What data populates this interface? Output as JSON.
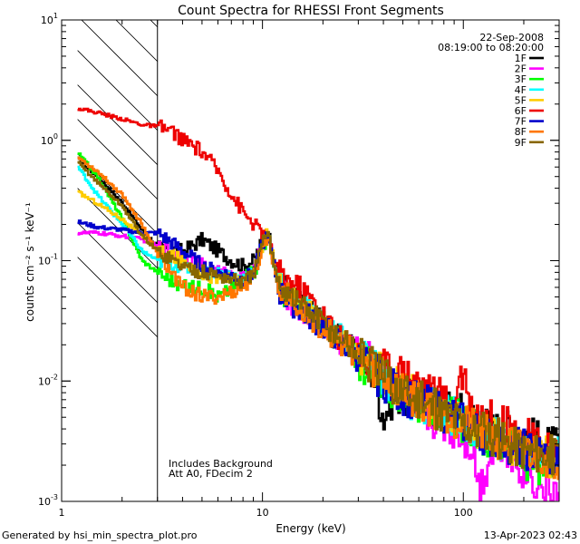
{
  "chart_data": {
    "type": "line",
    "title": "Count Spectra for RHESSI Front Segments",
    "xlabel": "Energy (keV)",
    "ylabel": "counts cm⁻² s⁻¹ keV⁻¹",
    "xscale": "log",
    "yscale": "log",
    "xlim": [
      1,
      300
    ],
    "ylim": [
      0.001,
      10
    ],
    "x_tick_labels": [
      {
        "value": 1,
        "label": "1"
      },
      {
        "value": 10,
        "label": "10"
      },
      {
        "value": 100,
        "label": "100"
      }
    ],
    "y_tick_labels": [
      {
        "value": 0.001,
        "base": "10",
        "exp": "-3"
      },
      {
        "value": 0.01,
        "base": "10",
        "exp": "-2"
      },
      {
        "value": 0.1,
        "base": "10",
        "exp": "-1"
      },
      {
        "value": 1,
        "base": "10",
        "exp": "0"
      },
      {
        "value": 10,
        "base": "10",
        "exp": "1"
      }
    ],
    "hatched_region": {
      "from_keV": 1.2,
      "to_keV": 3
    },
    "date": "22-Sep-2008",
    "time_range": "08:19:00 to 08:20:00",
    "annotations": [
      "Includes Background",
      "Att A0, FDecim 2"
    ],
    "series": [
      {
        "name": "1F",
        "color": "#000000",
        "points": [
          [
            1.2,
            0.7
          ],
          [
            1.5,
            0.5
          ],
          [
            2,
            0.3
          ],
          [
            2.5,
            0.18
          ],
          [
            3,
            0.13
          ],
          [
            4,
            0.12
          ],
          [
            5,
            0.15
          ],
          [
            6,
            0.12
          ],
          [
            7,
            0.1
          ],
          [
            8,
            0.09
          ],
          [
            9,
            0.1
          ],
          [
            10,
            0.15
          ],
          [
            10.5,
            0.18
          ],
          [
            12,
            0.07
          ],
          [
            15,
            0.045
          ],
          [
            20,
            0.03
          ],
          [
            25,
            0.022
          ],
          [
            30,
            0.016
          ],
          [
            35,
            0.012
          ],
          [
            40,
            0.005
          ],
          [
            45,
            0.008
          ],
          [
            55,
            0.007
          ],
          [
            70,
            0.006
          ],
          [
            90,
            0.006
          ],
          [
            110,
            0.005
          ],
          [
            140,
            0.004
          ],
          [
            170,
            0.004
          ],
          [
            200,
            0.0038
          ],
          [
            250,
            0.003
          ],
          [
            300,
            0.0028
          ]
        ]
      },
      {
        "name": "2F",
        "color": "#ff00ff",
        "points": [
          [
            1.2,
            0.17
          ],
          [
            1.5,
            0.17
          ],
          [
            2,
            0.16
          ],
          [
            2.5,
            0.15
          ],
          [
            3,
            0.13
          ],
          [
            4,
            0.11
          ],
          [
            5,
            0.09
          ],
          [
            6,
            0.08
          ],
          [
            7,
            0.075
          ],
          [
            8,
            0.07
          ],
          [
            9,
            0.08
          ],
          [
            10,
            0.14
          ],
          [
            10.5,
            0.17
          ],
          [
            12,
            0.06
          ],
          [
            15,
            0.04
          ],
          [
            20,
            0.028
          ],
          [
            25,
            0.02
          ],
          [
            30,
            0.018
          ],
          [
            35,
            0.014
          ],
          [
            40,
            0.012
          ],
          [
            45,
            0.009
          ],
          [
            55,
            0.007
          ],
          [
            70,
            0.005
          ],
          [
            90,
            0.004
          ],
          [
            110,
            0.003
          ],
          [
            120,
            0.0013
          ],
          [
            140,
            0.003
          ],
          [
            170,
            0.0025
          ],
          [
            200,
            0.0018
          ],
          [
            250,
            0.0013
          ],
          [
            300,
            0.0012
          ]
        ]
      },
      {
        "name": "3F",
        "color": "#00ff00",
        "points": [
          [
            1.2,
            0.78
          ],
          [
            1.5,
            0.5
          ],
          [
            2,
            0.22
          ],
          [
            2.5,
            0.1
          ],
          [
            3,
            0.08
          ],
          [
            4,
            0.06
          ],
          [
            5,
            0.06
          ],
          [
            6,
            0.05
          ],
          [
            7,
            0.06
          ],
          [
            8,
            0.07
          ],
          [
            9,
            0.08
          ],
          [
            10,
            0.13
          ],
          [
            10.5,
            0.16
          ],
          [
            12,
            0.06
          ],
          [
            15,
            0.04
          ],
          [
            20,
            0.03
          ],
          [
            25,
            0.02
          ],
          [
            30,
            0.015
          ],
          [
            35,
            0.012
          ],
          [
            40,
            0.01
          ],
          [
            45,
            0.008
          ],
          [
            55,
            0.007
          ],
          [
            70,
            0.006
          ],
          [
            90,
            0.005
          ],
          [
            110,
            0.004
          ],
          [
            140,
            0.003
          ],
          [
            170,
            0.0028
          ],
          [
            200,
            0.0022
          ],
          [
            250,
            0.002
          ],
          [
            300,
            0.002
          ]
        ]
      },
      {
        "name": "4F",
        "color": "#00ffff",
        "points": [
          [
            1.2,
            0.6
          ],
          [
            1.5,
            0.35
          ],
          [
            2,
            0.2
          ],
          [
            2.5,
            0.12
          ],
          [
            3,
            0.1
          ],
          [
            4,
            0.09
          ],
          [
            5,
            0.08
          ],
          [
            6,
            0.08
          ],
          [
            7,
            0.075
          ],
          [
            8,
            0.07
          ],
          [
            9,
            0.08
          ],
          [
            10,
            0.14
          ],
          [
            10.5,
            0.17
          ],
          [
            12,
            0.07
          ],
          [
            15,
            0.045
          ],
          [
            20,
            0.03
          ],
          [
            25,
            0.022
          ],
          [
            30,
            0.017
          ],
          [
            35,
            0.013
          ],
          [
            40,
            0.011
          ],
          [
            45,
            0.009
          ],
          [
            55,
            0.007
          ],
          [
            70,
            0.006
          ],
          [
            90,
            0.005
          ],
          [
            110,
            0.004
          ],
          [
            140,
            0.0035
          ],
          [
            170,
            0.003
          ],
          [
            200,
            0.0028
          ],
          [
            250,
            0.0025
          ],
          [
            300,
            0.0023
          ]
        ]
      },
      {
        "name": "5F",
        "color": "#ffcc00",
        "points": [
          [
            1.2,
            0.37
          ],
          [
            1.5,
            0.3
          ],
          [
            2,
            0.22
          ],
          [
            2.5,
            0.16
          ],
          [
            3,
            0.12
          ],
          [
            4,
            0.1
          ],
          [
            5,
            0.08
          ],
          [
            6,
            0.07
          ],
          [
            7,
            0.07
          ],
          [
            8,
            0.065
          ],
          [
            9,
            0.075
          ],
          [
            10,
            0.14
          ],
          [
            10.5,
            0.17
          ],
          [
            12,
            0.065
          ],
          [
            15,
            0.045
          ],
          [
            20,
            0.03
          ],
          [
            25,
            0.022
          ],
          [
            30,
            0.017
          ],
          [
            35,
            0.013
          ],
          [
            40,
            0.011
          ],
          [
            45,
            0.009
          ],
          [
            55,
            0.008
          ],
          [
            70,
            0.006
          ],
          [
            90,
            0.005
          ],
          [
            110,
            0.004
          ],
          [
            140,
            0.0035
          ],
          [
            170,
            0.003
          ],
          [
            200,
            0.0027
          ],
          [
            250,
            0.0024
          ],
          [
            300,
            0.0022
          ]
        ]
      },
      {
        "name": "6F",
        "color": "#ee0000",
        "points": [
          [
            1.2,
            1.85
          ],
          [
            1.5,
            1.7
          ],
          [
            2,
            1.5
          ],
          [
            2.5,
            1.35
          ],
          [
            3,
            1.3
          ],
          [
            3.5,
            1.2
          ],
          [
            4,
            1.0
          ],
          [
            5,
            0.8
          ],
          [
            6,
            0.55
          ],
          [
            7,
            0.35
          ],
          [
            8,
            0.25
          ],
          [
            9,
            0.2
          ],
          [
            10,
            0.17
          ],
          [
            11,
            0.12
          ],
          [
            12,
            0.08
          ],
          [
            13,
            0.07
          ],
          [
            15,
            0.06
          ],
          [
            17,
            0.05
          ],
          [
            20,
            0.035
          ],
          [
            23,
            0.025
          ],
          [
            25,
            0.022
          ],
          [
            28,
            0.02
          ],
          [
            32,
            0.016
          ],
          [
            35,
            0.014
          ],
          [
            40,
            0.013
          ],
          [
            45,
            0.012
          ],
          [
            50,
            0.012
          ],
          [
            55,
            0.011
          ],
          [
            60,
            0.01
          ],
          [
            65,
            0.009
          ],
          [
            70,
            0.008
          ],
          [
            80,
            0.007
          ],
          [
            90,
            0.0055
          ],
          [
            95,
            0.014
          ],
          [
            100,
            0.009
          ],
          [
            110,
            0.006
          ],
          [
            130,
            0.005
          ],
          [
            150,
            0.0045
          ],
          [
            170,
            0.004
          ],
          [
            200,
            0.0035
          ],
          [
            230,
            0.003
          ],
          [
            260,
            0.003
          ],
          [
            300,
            0.0028
          ]
        ]
      },
      {
        "name": "7F",
        "color": "#0000cc",
        "points": [
          [
            1.2,
            0.21
          ],
          [
            1.5,
            0.19
          ],
          [
            2,
            0.18
          ],
          [
            2.5,
            0.17
          ],
          [
            3,
            0.17
          ],
          [
            4,
            0.12
          ],
          [
            5,
            0.09
          ],
          [
            6,
            0.08
          ],
          [
            7,
            0.075
          ],
          [
            8,
            0.07
          ],
          [
            9,
            0.08
          ],
          [
            10,
            0.14
          ],
          [
            10.5,
            0.17
          ],
          [
            12,
            0.055
          ],
          [
            15,
            0.04
          ],
          [
            20,
            0.028
          ],
          [
            25,
            0.02
          ],
          [
            30,
            0.015
          ],
          [
            35,
            0.012
          ],
          [
            40,
            0.01
          ],
          [
            45,
            0.0085
          ],
          [
            55,
            0.007
          ],
          [
            70,
            0.006
          ],
          [
            90,
            0.005
          ],
          [
            110,
            0.004
          ],
          [
            140,
            0.0033
          ],
          [
            170,
            0.003
          ],
          [
            200,
            0.0027
          ],
          [
            250,
            0.0024
          ],
          [
            300,
            0.0022
          ]
        ]
      },
      {
        "name": "8F",
        "color": "#ff7700",
        "points": [
          [
            1.2,
            0.72
          ],
          [
            1.5,
            0.55
          ],
          [
            2,
            0.35
          ],
          [
            2.5,
            0.2
          ],
          [
            3,
            0.11
          ],
          [
            4,
            0.06
          ],
          [
            5,
            0.05
          ],
          [
            6,
            0.05
          ],
          [
            7,
            0.055
          ],
          [
            8,
            0.06
          ],
          [
            9,
            0.075
          ],
          [
            10,
            0.13
          ],
          [
            10.5,
            0.16
          ],
          [
            12,
            0.06
          ],
          [
            15,
            0.04
          ],
          [
            20,
            0.028
          ],
          [
            25,
            0.02
          ],
          [
            30,
            0.016
          ],
          [
            35,
            0.013
          ],
          [
            40,
            0.011
          ],
          [
            45,
            0.009
          ],
          [
            55,
            0.0075
          ],
          [
            70,
            0.006
          ],
          [
            90,
            0.005
          ],
          [
            110,
            0.004
          ],
          [
            140,
            0.0034
          ],
          [
            170,
            0.003
          ],
          [
            200,
            0.0027
          ],
          [
            250,
            0.0024
          ],
          [
            300,
            0.0022
          ]
        ]
      },
      {
        "name": "9F",
        "color": "#886600",
        "points": [
          [
            1.2,
            0.65
          ],
          [
            1.5,
            0.45
          ],
          [
            2,
            0.28
          ],
          [
            2.5,
            0.16
          ],
          [
            3,
            0.12
          ],
          [
            4,
            0.09
          ],
          [
            5,
            0.08
          ],
          [
            6,
            0.075
          ],
          [
            7,
            0.07
          ],
          [
            8,
            0.065
          ],
          [
            9,
            0.08
          ],
          [
            10,
            0.14
          ],
          [
            10.5,
            0.17
          ],
          [
            12,
            0.065
          ],
          [
            15,
            0.045
          ],
          [
            20,
            0.03
          ],
          [
            25,
            0.022
          ],
          [
            30,
            0.017
          ],
          [
            35,
            0.013
          ],
          [
            40,
            0.011
          ],
          [
            45,
            0.009
          ],
          [
            55,
            0.0075
          ],
          [
            70,
            0.006
          ],
          [
            90,
            0.005
          ],
          [
            110,
            0.004
          ],
          [
            140,
            0.0035
          ],
          [
            170,
            0.003
          ],
          [
            200,
            0.0027
          ],
          [
            250,
            0.0025
          ],
          [
            300,
            0.0023
          ]
        ]
      }
    ]
  },
  "footer": {
    "generated_by": "Generated by hsi_min_spectra_plot.pro",
    "timestamp": "13-Apr-2023 02:43"
  }
}
